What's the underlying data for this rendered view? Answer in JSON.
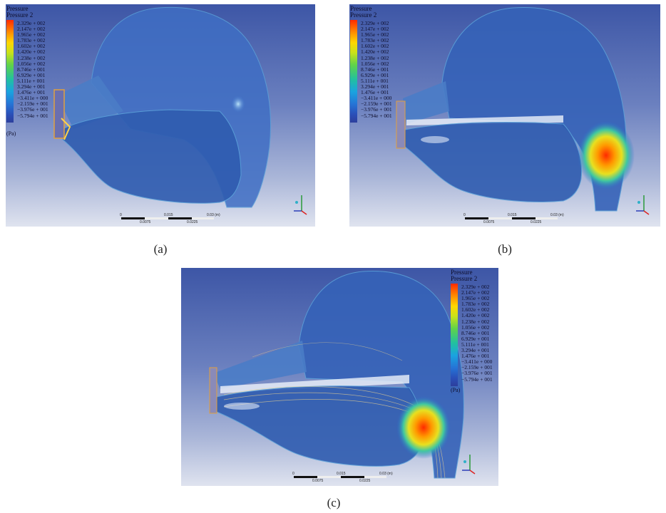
{
  "legend": {
    "title": "Pressure",
    "variable": "Pressure 2",
    "values": [
      "2.329e + 002",
      "2.147e + 002",
      "1.965e + 002",
      "1.783e + 002",
      "1.602e + 002",
      "1.420e + 002",
      "1.238e + 002",
      "1.056e + 002",
      "8.746e + 001",
      "6.929e + 001",
      "5.111e + 001",
      "3.294e + 001",
      "1.476e + 001",
      "−3.411e + 000",
      "−2.159e + 001",
      "−3.976e + 001",
      "−5.794e + 001"
    ],
    "unit": "(Pa)",
    "colors": [
      "#ff2a00",
      "#ff8c00",
      "#ffd600",
      "#c8e21a",
      "#5fd24a",
      "#22c0a0",
      "#1aa3e0",
      "#2574d6",
      "#2d3f9c"
    ]
  },
  "scale": {
    "top_labels": [
      "0",
      "0.015",
      "0.03 (m)"
    ],
    "bottom_labels": [
      "0.0075",
      "0.0225"
    ]
  },
  "captions": {
    "a": "(a)",
    "b": "(b)",
    "c": "(c)"
  }
}
